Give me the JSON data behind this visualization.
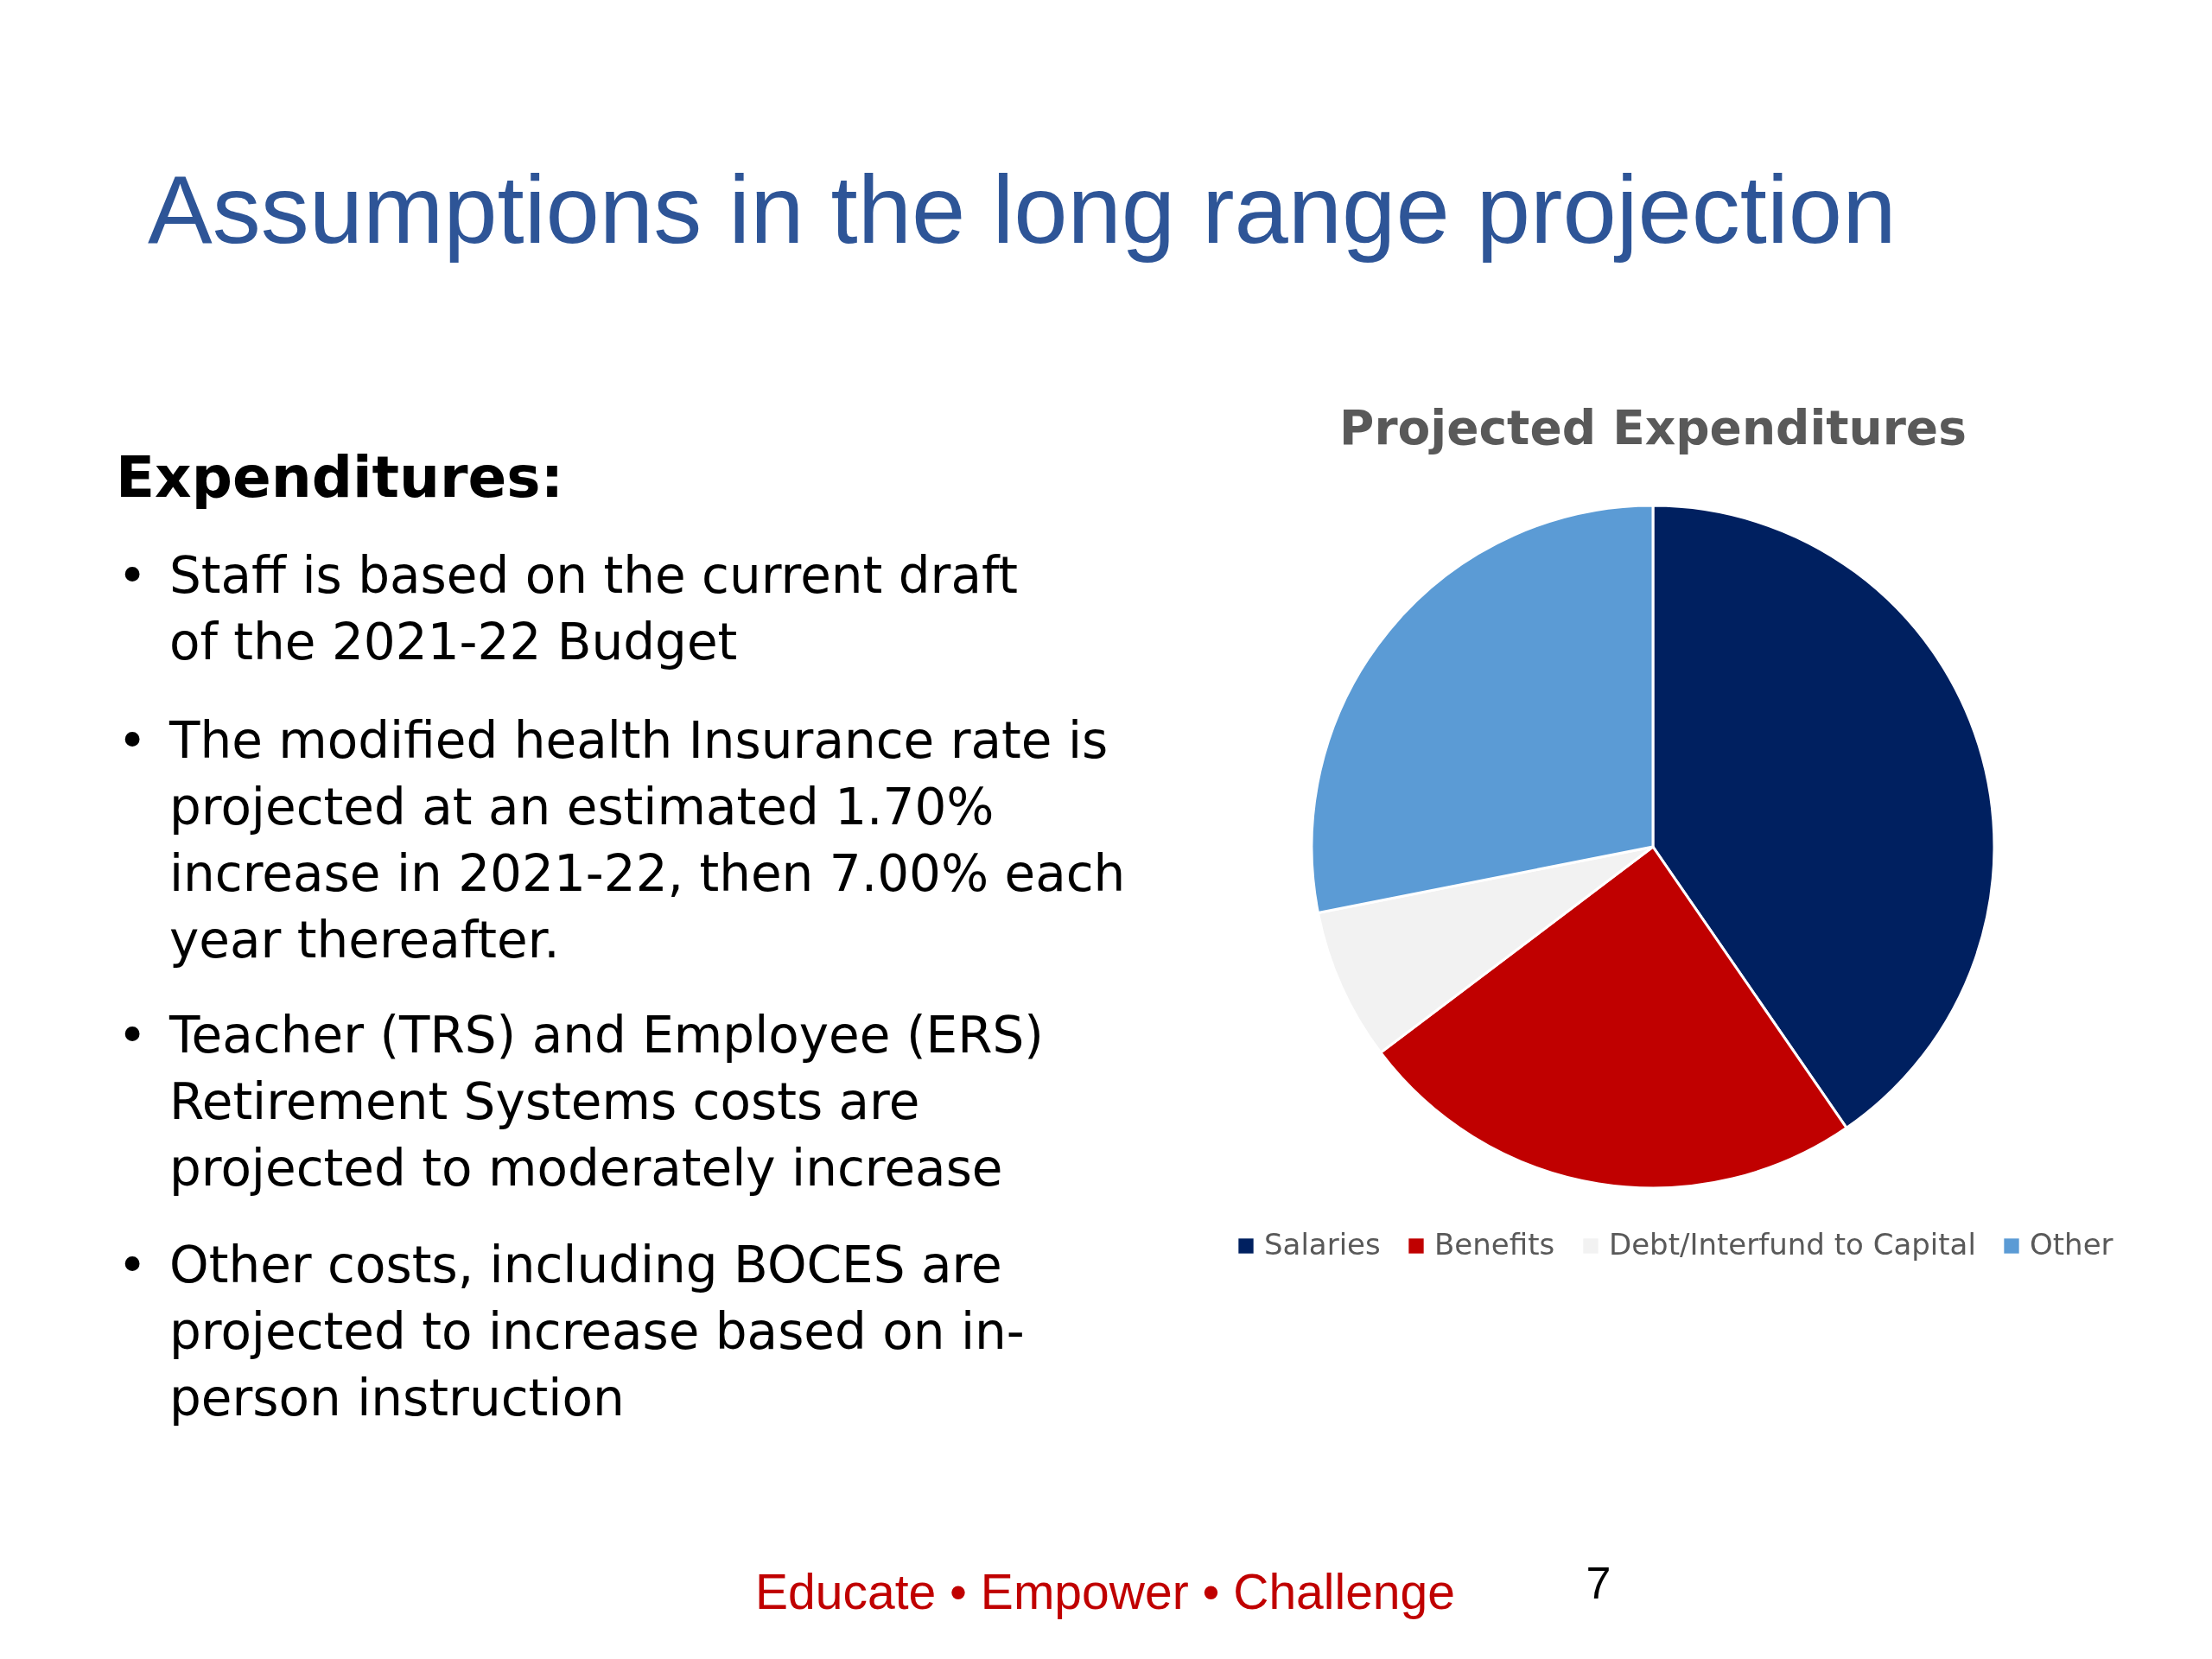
{
  "chart_data": {
    "type": "pie",
    "title": "Projected Expenditures",
    "categories": [
      "Salaries",
      "Benefits",
      "Debt/Interfund to Capital",
      "Other"
    ],
    "values": [
      40.4,
      24.3,
      7.2,
      28.1
    ],
    "colors": [
      "#002060",
      "#c00000",
      "#f2f2f2",
      "#5b9bd5"
    ],
    "legend": "bottom",
    "annotations": [
      "Assumptions in the long range projection",
      "Expenditures:",
      "• Staff is based on the current draft of the 2021-22 Budget",
      "• The modified health Insurance rate is projected at an estimated 1.70% increase in 2021-22, then 7.00% each year thereafter.",
      "• Teacher (TRS) and Employee (ERS) Retirement Systems costs are projected to moderately increase",
      "• Other costs, including BOCES are projected to increase based on in-person instruction",
      "Educate • Empower • Challenge",
      "7"
    ]
  }
}
